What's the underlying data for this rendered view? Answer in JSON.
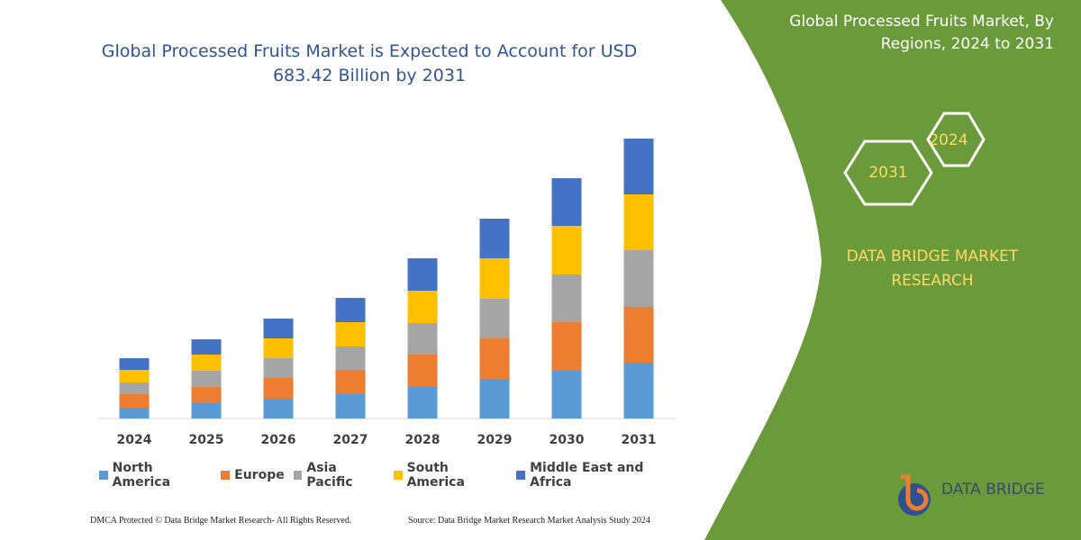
{
  "chart_data": {
    "type": "stacked-bar",
    "title": "Global Processed Fruits Market is Expected to Account for USD 683.42 Billion by 2031",
    "categories": [
      "2024",
      "2025",
      "2026",
      "2027",
      "2028",
      "2029",
      "2030",
      "2031"
    ],
    "series": [
      {
        "name": "North America",
        "color": "#5b9bd5",
        "values": [
          12,
          17,
          22,
          27,
          35,
          44,
          53,
          62
        ]
      },
      {
        "name": "Europe",
        "color": "#ed7d31",
        "values": [
          15,
          18,
          23,
          27,
          36,
          45,
          54,
          62
        ]
      },
      {
        "name": "Asia Pacific",
        "color": "#a5a5a5",
        "values": [
          13,
          18,
          22,
          26,
          35,
          44,
          53,
          63
        ]
      },
      {
        "name": "South America",
        "color": "#ffc000",
        "values": [
          14,
          18,
          22,
          27,
          36,
          45,
          54,
          62
        ]
      },
      {
        "name": "Middle East and Africa",
        "color": "#4472c4",
        "values": [
          13,
          17,
          22,
          27,
          36,
          44,
          53,
          62
        ]
      }
    ],
    "ylim": [
      0,
      320
    ]
  },
  "panel": {
    "title": "Global Processed Fruits Market, By Regions, 2024 to 2031",
    "hexagons": [
      "2024",
      "2031"
    ],
    "brand": "DATA BRIDGE MARKET RESEARCH"
  },
  "logo": "DATA BRIDGE",
  "footer": {
    "left": "DMCA Protected © Data Bridge Market Research- All Rights Reserved.",
    "right": "Source: Data Bridge Market Research Market Analysis Study 2024"
  }
}
